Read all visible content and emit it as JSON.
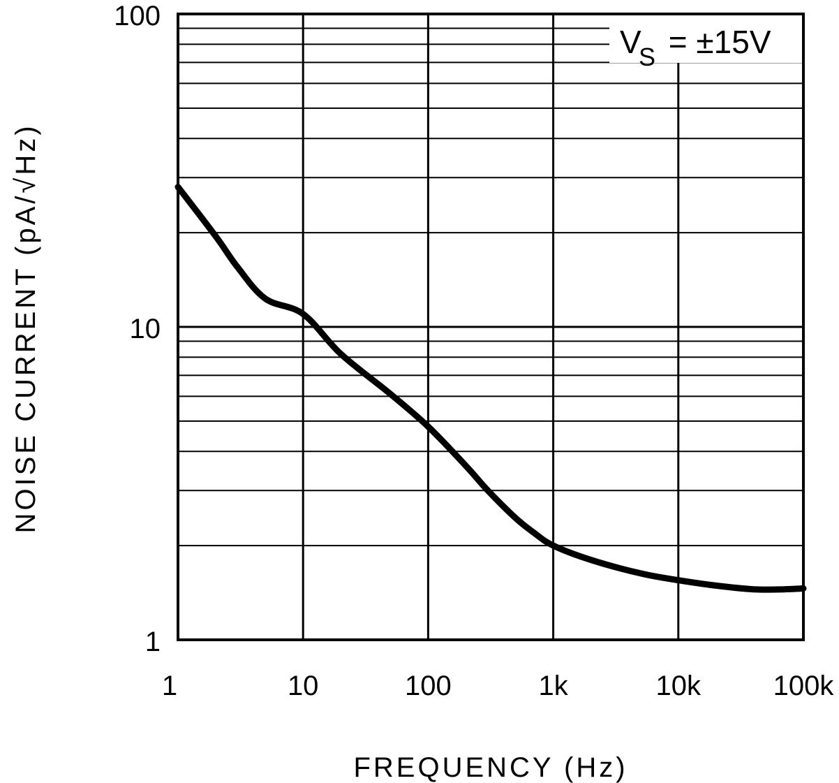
{
  "chart_data": {
    "type": "line",
    "title": "",
    "xlabel": "FREQUENCY (Hz)",
    "ylabel": "NOISE CURRENT (pA/√Hz)",
    "xscale": "log",
    "yscale": "log",
    "xlim": [
      1,
      100000
    ],
    "ylim": [
      1,
      100
    ],
    "grid": true,
    "x_tick_labels": [
      "1",
      "10",
      "100",
      "1k",
      "10k",
      "100k"
    ],
    "x_ticks": [
      1,
      10,
      100,
      1000,
      10000,
      100000
    ],
    "y_tick_labels": [
      "1",
      "10",
      "100"
    ],
    "y_ticks": [
      1,
      10,
      100
    ],
    "annotation": {
      "main": "V",
      "subscript": "S",
      "rest": " = ±15V"
    },
    "series": [
      {
        "name": "Noise current (VS = ±15V)",
        "x": [
          1,
          2,
          3,
          5,
          10,
          20,
          50,
          100,
          200,
          300,
          500,
          700,
          1000,
          2000,
          5000,
          10000,
          20000,
          40000,
          70000,
          100000
        ],
        "values": [
          28,
          19.5,
          15.5,
          12.3,
          11.0,
          8.2,
          6.1,
          4.8,
          3.6,
          3.0,
          2.45,
          2.2,
          2.0,
          1.8,
          1.63,
          1.55,
          1.49,
          1.45,
          1.45,
          1.46
        ]
      }
    ]
  }
}
